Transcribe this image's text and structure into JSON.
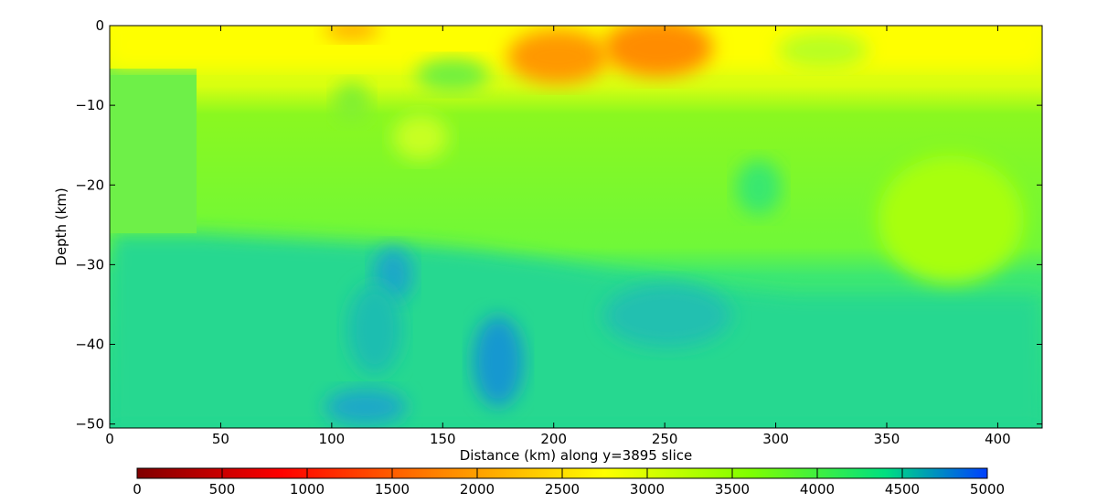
{
  "chart_data": {
    "type": "heatmap",
    "title": "",
    "xlabel": "Distance (km) along y=3895 slice",
    "ylabel": "Depth (km)",
    "xlim": [
      0,
      420
    ],
    "ylim": [
      -50.5,
      0
    ],
    "x_ticks": [
      0,
      50,
      100,
      150,
      200,
      250,
      300,
      350,
      400
    ],
    "x_tick_labels": [
      "0",
      "50",
      "100",
      "150",
      "200",
      "250",
      "300",
      "350",
      "400"
    ],
    "y_ticks": [
      0,
      -10,
      -20,
      -30,
      -40,
      -50
    ],
    "y_tick_labels": [
      "0",
      "−10",
      "−20",
      "−30",
      "−40",
      "−50"
    ],
    "colorbar": {
      "range": [
        0,
        5000
      ],
      "ticks": [
        0,
        500,
        1000,
        1500,
        2000,
        2500,
        3000,
        3500,
        4000,
        4500,
        5000
      ],
      "tick_labels": [
        "0",
        "500",
        "1000",
        "1500",
        "2000",
        "2500",
        "3000",
        "3500",
        "4000",
        "4500",
        "5000"
      ],
      "colormap": [
        "#800000",
        "#ff0000",
        "#ff8000",
        "#ffff00",
        "#80ff00",
        "#00e080",
        "#0040ff"
      ]
    },
    "regions": [
      {
        "name": "near-surface low-velocity layer",
        "value": 3000,
        "depth_range": [
          0,
          -7
        ]
      },
      {
        "name": "low-velocity anomaly",
        "value": 2100,
        "x_range": [
          185,
          270
        ],
        "depth_range": [
          0,
          -8
        ]
      },
      {
        "name": "upper crust",
        "value": 3800,
        "depth_range": [
          -7,
          -30
        ]
      },
      {
        "name": "lower crust",
        "value": 4400,
        "depth_range": [
          -27,
          -50
        ]
      },
      {
        "name": "high-velocity body",
        "value": 4800,
        "x_center": 173,
        "depth_center": -42
      },
      {
        "name": "high-velocity body",
        "value": 4750,
        "x_center": 125,
        "depth_center": -32
      }
    ],
    "grid": false
  }
}
